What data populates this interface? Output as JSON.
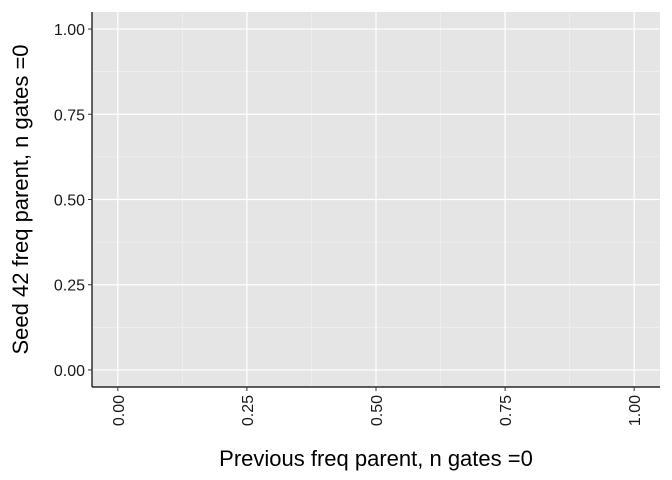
{
  "chart_data": {
    "type": "scatter",
    "title": "",
    "xlabel": "Previous freq parent, n gates =0",
    "ylabel": "Seed 42 freq parent, n gates =0",
    "xlim": [
      -0.05,
      1.05
    ],
    "ylim": [
      -0.05,
      1.05
    ],
    "x_ticks": [
      0,
      0.25,
      0.5,
      0.75,
      1
    ],
    "x_tick_labels": [
      "0.00",
      "0.25",
      "0.50",
      "0.75",
      "1.00"
    ],
    "y_ticks": [
      0,
      0.25,
      0.5,
      0.75,
      1
    ],
    "y_tick_labels": [
      "0.00",
      "0.25",
      "0.50",
      "0.75",
      "1.00"
    ],
    "x_tick_rotation": "vertical",
    "grid": true,
    "legend": "none",
    "series": [
      {
        "points": []
      }
    ],
    "colors": {
      "panel_background": "#e5e5e5",
      "grid_major": "#ffffff",
      "grid_minor": "#f2f2f2",
      "axis_line": "#000000",
      "text": "#1a1a1a"
    }
  }
}
